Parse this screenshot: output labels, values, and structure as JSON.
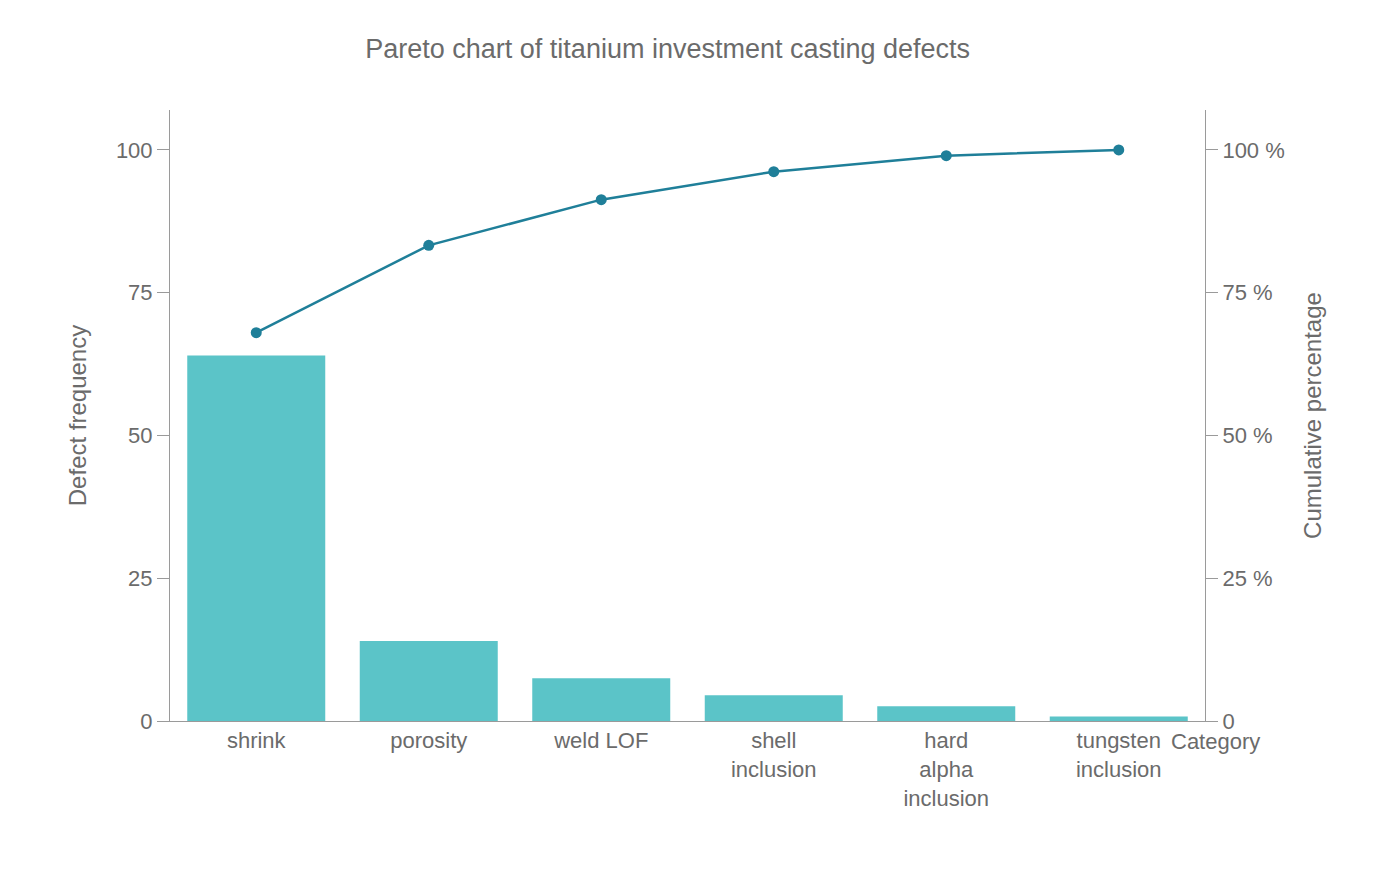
{
  "chart_data": {
    "type": "bar",
    "title": "Pareto chart of titanium investment casting defects",
    "x_label": "Category",
    "y_label": "Defect frequency",
    "y2_label": "Cumulative percentage",
    "categories": [
      "shrink",
      "porosity",
      "weld LOF",
      "shell inclusion",
      "hard alpha inclusion",
      "tungsten inclusion"
    ],
    "series": [
      {
        "type": "bar",
        "color": "#5bc4c8",
        "values": [
          64,
          14,
          7.5,
          4.5,
          2.6,
          0.8
        ]
      },
      {
        "type": "line",
        "axis": "y2",
        "color": "#1f7f99",
        "marker": "circle",
        "line_style": "solid",
        "values": [
          68,
          83.3,
          91.3,
          96.2,
          99,
          100
        ]
      }
    ],
    "ylim": [
      0,
      107
    ],
    "yticks": [
      0,
      25,
      50,
      75,
      100
    ],
    "y2lim": [
      0,
      107
    ],
    "y2ticks": [
      0,
      {
        "value": 25,
        "label": "25 %"
      },
      {
        "value": 50,
        "label": "50 %"
      },
      {
        "value": 75,
        "label": "75 %"
      },
      {
        "value": 100,
        "label": "100 %"
      }
    ],
    "grid": false
  }
}
